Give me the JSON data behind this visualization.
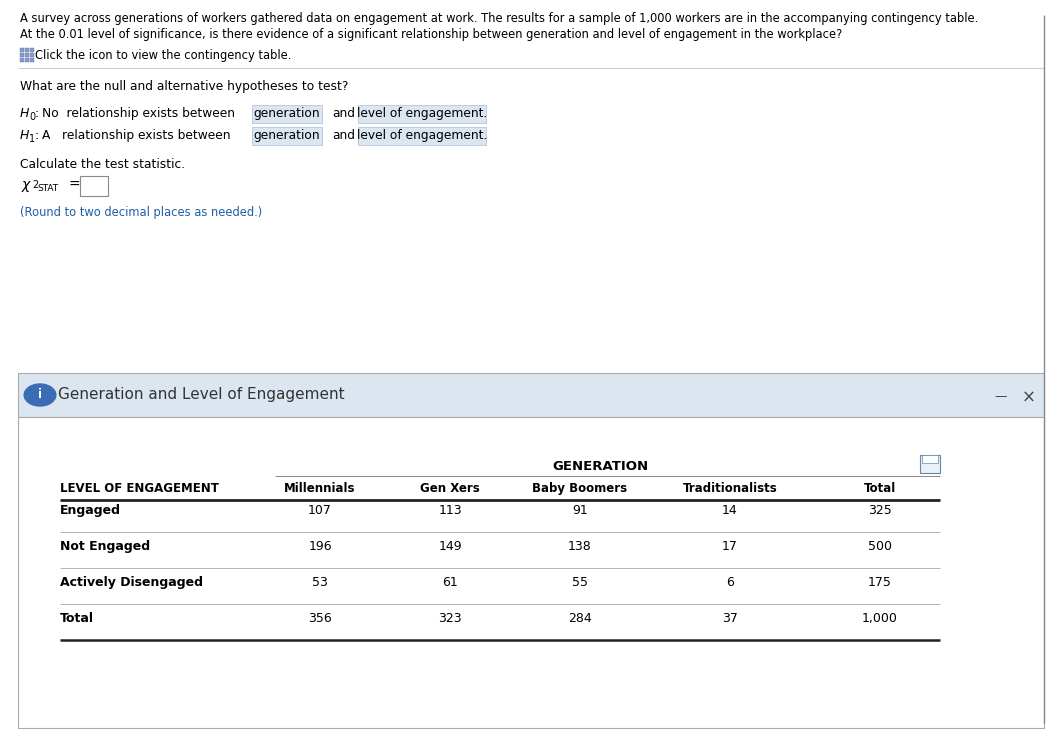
{
  "title_line1": "A survey across generations of workers gathered data on engagement at work. The results for a sample of 1,000 workers are in the accompanying contingency table.",
  "title_line2": "At the 0.01 level of significance, is there evidence of a significant relationship between generation and level of engagement in the workplace?",
  "click_text": "Click the icon to view the contingency table.",
  "hypotheses_header": "What are the null and alternative hypotheses to test?",
  "calc_header": "Calculate the test statistic.",
  "round_note": "(Round to two decimal places as needed.)",
  "panel_title": "Generation and Level of Engagement",
  "generation_label": "GENERATION",
  "col_headers": [
    "LEVEL OF ENGAGEMENT",
    "Millennials",
    "Gen Xers",
    "Baby Boomers",
    "Traditionalists",
    "Total"
  ],
  "rows": [
    [
      "Engaged",
      "107",
      "113",
      "91",
      "14",
      "325"
    ],
    [
      "Not Engaged",
      "196",
      "149",
      "138",
      "17",
      "500"
    ],
    [
      "Actively Disengaged",
      "53",
      "61",
      "55",
      "6",
      "175"
    ],
    [
      "Total",
      "356",
      "323",
      "284",
      "37",
      "1,000"
    ]
  ],
  "bg_color": "#ffffff",
  "panel_header_bg": "#dce6f1",
  "panel_body_bg": "#ffffff",
  "highlight_bg": "#dce6f1",
  "text_color": "#000000",
  "blue_text_color": "#1f5fa6",
  "separator_color": "#cccccc",
  "table_border_color": "#555555",
  "panel_border_color": "#aaaaaa"
}
